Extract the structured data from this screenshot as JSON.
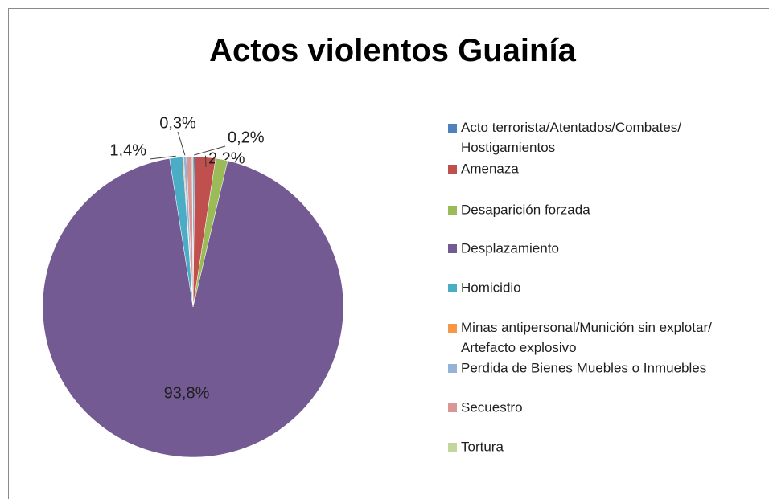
{
  "chart_data": {
    "type": "pie",
    "title": "Actos violentos Guainía",
    "categories": [
      "Acto terrorista/Atentados/Combates/Hostigamientos",
      "Amenaza",
      "Desaparición forzada",
      "Desplazamiento",
      "Homicidio",
      "Minas antipersonal/Munición sin explotar/Artefacto explosivo",
      "Perdida de Bienes Muebles o Inmuebles",
      "Secuestro",
      "Tortura"
    ],
    "values": [
      0.2,
      2.2,
      1.3,
      93.8,
      1.4,
      0.1,
      0.3,
      0.6,
      0.1
    ],
    "value_labels": [
      "0,2%",
      "2,2%",
      null,
      "93,8%",
      "1,4%",
      null,
      "0,3%",
      null,
      null
    ],
    "colors": [
      "#4f81bd",
      "#c0504d",
      "#9bbb59",
      "#735a93",
      "#4bacc6",
      "#f79646",
      "#95b3d7",
      "#d99694",
      "#c3d69b"
    ],
    "legend": "right"
  }
}
